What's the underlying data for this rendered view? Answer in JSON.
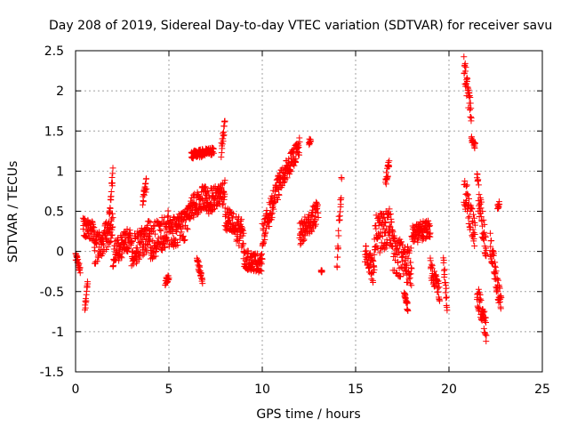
{
  "chart_data": {
    "type": "scatter",
    "title": "Day 208 of 2019, Sidereal Day-to-day VTEC variation (SDTVAR) for receiver savu",
    "xlabel": "GPS time / hours",
    "ylabel": "SDTVAR / TECUs",
    "xlim": [
      0,
      25
    ],
    "ylim": [
      -1.5,
      2.5
    ],
    "xticks": [
      "0",
      "5",
      "10",
      "15",
      "20",
      "25"
    ],
    "yticks": [
      "-1.5",
      "-1",
      "-0.5",
      "0",
      "0.5",
      "1",
      "1.5",
      "2",
      "2.5"
    ],
    "grid": true,
    "marker": "+",
    "colors": {
      "points": "#ff0000",
      "grid": "#a0a0a0",
      "axes": "#000000"
    },
    "series": [
      {
        "name": "SDTVAR",
        "segments": [
          {
            "x": [
              0.0,
              0.25
            ],
            "y": [
              -0.05,
              -0.22
            ],
            "spread": 0.06
          },
          {
            "x": [
              0.5,
              0.65
            ],
            "y": [
              -0.72,
              -0.4
            ],
            "spread": 0.06
          },
          {
            "x": [
              0.4,
              1.0
            ],
            "y": [
              0.3,
              0.25
            ],
            "spread": 0.12
          },
          {
            "x": [
              1.0,
              2.0
            ],
            "y": [
              0.0,
              0.3
            ],
            "spread": 0.18
          },
          {
            "x": [
              1.8,
              2.0
            ],
            "y": [
              0.45,
              0.98
            ],
            "spread": 0.08
          },
          {
            "x": [
              2.0,
              3.0
            ],
            "y": [
              -0.05,
              0.2
            ],
            "spread": 0.15
          },
          {
            "x": [
              3.0,
              4.0
            ],
            "y": [
              0.0,
              0.2
            ],
            "spread": 0.2
          },
          {
            "x": [
              3.6,
              3.8
            ],
            "y": [
              0.65,
              0.85
            ],
            "spread": 0.08
          },
          {
            "x": [
              4.0,
              5.0
            ],
            "y": [
              0.1,
              0.3
            ],
            "spread": 0.22
          },
          {
            "x": [
              4.8,
              5.0
            ],
            "y": [
              -0.4,
              -0.3
            ],
            "spread": 0.05
          },
          {
            "x": [
              5.0,
              6.0
            ],
            "y": [
              0.2,
              0.35
            ],
            "spread": 0.2
          },
          {
            "x": [
              6.0,
              7.0
            ],
            "y": [
              0.5,
              0.7
            ],
            "spread": 0.15
          },
          {
            "x": [
              6.2,
              7.4
            ],
            "y": [
              1.2,
              1.25
            ],
            "spread": 0.05
          },
          {
            "x": [
              6.5,
              6.8
            ],
            "y": [
              -0.1,
              -0.35
            ],
            "spread": 0.06
          },
          {
            "x": [
              7.0,
              8.0
            ],
            "y": [
              0.6,
              0.75
            ],
            "spread": 0.15
          },
          {
            "x": [
              7.8,
              8.0
            ],
            "y": [
              1.25,
              1.6
            ],
            "spread": 0.08
          },
          {
            "x": [
              8.0,
              9.0
            ],
            "y": [
              0.4,
              0.2
            ],
            "spread": 0.18
          },
          {
            "x": [
              9.0,
              10.0
            ],
            "y": [
              -0.1,
              -0.15
            ],
            "spread": 0.12
          },
          {
            "x": [
              10.0,
              11.0
            ],
            "y": [
              0.2,
              0.9
            ],
            "spread": 0.15
          },
          {
            "x": [
              11.0,
              12.0
            ],
            "y": [
              0.9,
              1.3
            ],
            "spread": 0.12
          },
          {
            "x": [
              12.0,
              13.0
            ],
            "y": [
              0.2,
              0.5
            ],
            "spread": 0.15
          },
          {
            "x": [
              12.5,
              12.6
            ],
            "y": [
              1.35,
              1.4
            ],
            "spread": 0.04
          },
          {
            "x": [
              13.15,
              13.2
            ],
            "y": [
              -0.25,
              -0.25
            ],
            "spread": 0.02
          },
          {
            "x": [
              14.0,
              14.25
            ],
            "y": [
              -0.1,
              0.85
            ],
            "spread": 0.15
          },
          {
            "x": [
              15.5,
              16.0
            ],
            "y": [
              0.0,
              -0.3
            ],
            "spread": 0.15
          },
          {
            "x": [
              16.0,
              17.0
            ],
            "y": [
              0.2,
              0.3
            ],
            "spread": 0.25
          },
          {
            "x": [
              16.6,
              16.8
            ],
            "y": [
              0.85,
              1.1
            ],
            "spread": 0.08
          },
          {
            "x": [
              17.0,
              18.0
            ],
            "y": [
              0.0,
              -0.2
            ],
            "spread": 0.25
          },
          {
            "x": [
              17.6,
              17.8
            ],
            "y": [
              -0.55,
              -0.7
            ],
            "spread": 0.06
          },
          {
            "x": [
              18.0,
              19.0
            ],
            "y": [
              0.2,
              0.3
            ],
            "spread": 0.12
          },
          {
            "x": [
              19.0,
              19.5
            ],
            "y": [
              -0.2,
              -0.5
            ],
            "spread": 0.12
          },
          {
            "x": [
              19.7,
              19.9
            ],
            "y": [
              -0.1,
              -0.7
            ],
            "spread": 0.1
          },
          {
            "x": [
              20.8,
              21.2
            ],
            "y": [
              2.3,
              1.7
            ],
            "spread": 0.15
          },
          {
            "x": [
              21.2,
              21.4
            ],
            "y": [
              1.4,
              1.3
            ],
            "spread": 0.05
          },
          {
            "x": [
              20.8,
              21.4
            ],
            "y": [
              0.8,
              0.2
            ],
            "spread": 0.2
          },
          {
            "x": [
              21.5,
              22.0
            ],
            "y": [
              0.8,
              0.0
            ],
            "spread": 0.2
          },
          {
            "x": [
              21.5,
              22.0
            ],
            "y": [
              -0.5,
              -1.0
            ],
            "spread": 0.15
          },
          {
            "x": [
              22.2,
              22.8
            ],
            "y": [
              0.1,
              -0.7
            ],
            "spread": 0.15
          },
          {
            "x": [
              22.6,
              22.7
            ],
            "y": [
              0.55,
              0.6
            ],
            "spread": 0.04
          }
        ]
      }
    ]
  }
}
